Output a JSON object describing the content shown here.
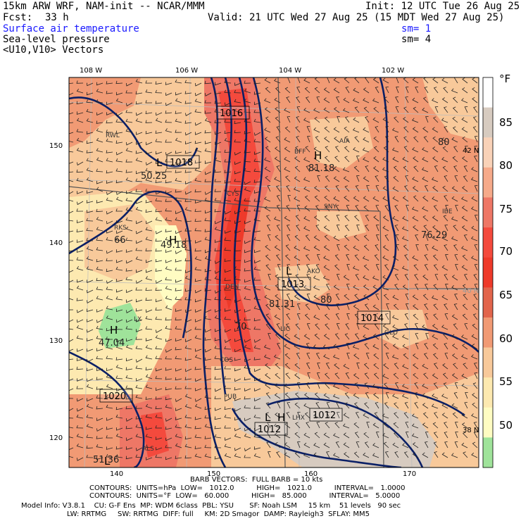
{
  "header": {
    "model": "15km ARW WRF, NAM-init -- NCAR/MMM",
    "init": "Init: 12 UTC Tue 26 Aug 25",
    "fcst_label": "Fcst:",
    "fcst_value": "33 h",
    "valid": "Valid: 21 UTC Wed 27 Aug 25 (15 MDT Wed 27 Aug 25)",
    "field1": "Surface air temperature",
    "field1_sm": "sm= 1",
    "field2": "Sea-level pressure",
    "field2_sm": "sm= 4",
    "field3": "<U10,V10> Vectors"
  },
  "axes": {
    "top_lon": [
      "108 W",
      "106 W",
      "104 W",
      "102 W"
    ],
    "left_grid": [
      "150",
      "140",
      "130",
      "120"
    ],
    "bottom_grid": [
      "140",
      "150",
      "160",
      "170"
    ],
    "right_lat": [
      "42 N",
      "40 N",
      "38 N"
    ]
  },
  "colorbar": {
    "unit": "°F",
    "labels": [
      "85",
      "80",
      "75",
      "70",
      "65",
      "60",
      "55",
      "50"
    ],
    "colors": [
      "#ffffff",
      "#d7cbc0",
      "#f9d2b8",
      "#f6aa8a",
      "#ee7766",
      "#f44a3d",
      "#ee3a2a",
      "#e2654c",
      "#f19a74",
      "#f8c99a",
      "#fde9b0",
      "#fffcc2",
      "#9fe39a"
    ]
  },
  "map_labels": {
    "stations": [
      "RWL",
      "BFF",
      "AIA",
      "CYS",
      "SNY",
      "RKS",
      "IBE",
      "DEN",
      "AKO",
      "GLD",
      "LIC",
      "LX",
      "COS",
      "PUB",
      "LHX",
      "ALS"
    ],
    "temps": [
      "50.25",
      "66",
      "49.18",
      "81.18",
      "80",
      "76.29",
      "81.31",
      "80",
      "47.04",
      "70",
      "51.36"
    ],
    "isobars": [
      "1016",
      "1018",
      "1013",
      "1014",
      "1020",
      "1012",
      "1012"
    ],
    "highs_lows": [
      "L",
      "H",
      "L",
      "H",
      "L",
      "H",
      "H",
      "L"
    ]
  },
  "footer": {
    "barb": "BARB VECTORS:  FULL BARB = 10 kts",
    "contours1": "CONTOURS:  UNITS=hPa  LOW=   1012.0          HIGH=   1021.0          INTERVAL=   1.0000",
    "contours2": "CONTOURS:  UNITS=°F  LOW=   60.000          HIGH=   85.000          INTERVAL=   5.0000",
    "model_info1": "Model Info: V3.8.1    CU: G-F Ens  MP: WDM 6class  PBL: YSU       SF: Noah LSM     15 km    51 levels   90 sec",
    "model_info2": "LW: RRTMG     SW: RRTMG  DIFF: full     KM: 2D Smagor  DAMP: Rayleigh3  SFLAY: MM5"
  }
}
